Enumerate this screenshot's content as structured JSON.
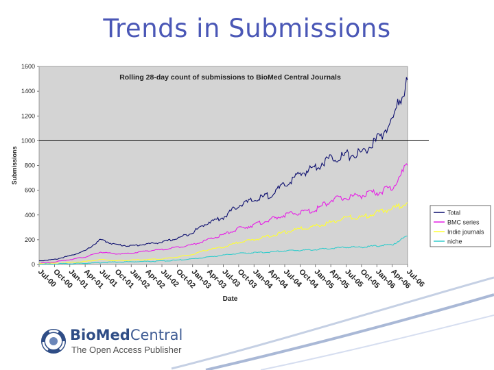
{
  "slide": {
    "title": "Trends in Submissions"
  },
  "logo": {
    "name_bold": "BioMed",
    "name_light": "Central",
    "tagline": "The Open Access Publisher"
  },
  "colors": {
    "title": "#4a57b6",
    "plot_background": "#d4d4d4",
    "total": "#0b0d6e",
    "bmc_series": "#e61ee6",
    "independent": "#ffff33",
    "bmc_niche": "#33cccc"
  },
  "chart_data": {
    "type": "line",
    "title": "Rolling 28-day count of submissions to BioMed Central Journals",
    "xlabel": "Date",
    "ylabel": "Submissions",
    "ylim": [
      0,
      1600
    ],
    "yticks": [
      0,
      200,
      400,
      600,
      800,
      1000,
      1200,
      1400,
      1600
    ],
    "grid": "horizontal line at 1000",
    "legend_position": "right",
    "x": [
      "Jul-00",
      "Oct-00",
      "Jan-01",
      "Apr-01",
      "Jul-01",
      "Oct-01",
      "Jan-02",
      "Apr-02",
      "Jul-02",
      "Oct-02",
      "Jan-03",
      "Apr-03",
      "Jul-03",
      "Oct-03",
      "Jan-04",
      "Apr-04",
      "Jul-04",
      "Oct-04",
      "Jan-05",
      "Apr-05",
      "Jul-05",
      "Oct-05",
      "Jan-06",
      "Apr-06",
      "Jul-06"
    ],
    "series": [
      {
        "name": "Total",
        "color": "#0b0d6e",
        "values": [
          30,
          40,
          70,
          110,
          200,
          160,
          150,
          165,
          180,
          210,
          260,
          340,
          380,
          480,
          520,
          560,
          640,
          730,
          790,
          860,
          880,
          900,
          1000,
          1160,
          1490
        ]
      },
      {
        "name": "BMC series",
        "color": "#e61ee6",
        "values": [
          10,
          20,
          40,
          60,
          100,
          85,
          90,
          110,
          120,
          140,
          160,
          200,
          240,
          290,
          320,
          360,
          400,
          420,
          440,
          520,
          540,
          560,
          580,
          620,
          800
        ]
      },
      {
        "name": "Indie journals",
        "color": "#ffff33",
        "values": [
          5,
          10,
          15,
          25,
          40,
          30,
          35,
          40,
          45,
          60,
          80,
          120,
          140,
          180,
          200,
          230,
          260,
          290,
          310,
          340,
          380,
          380,
          420,
          450,
          500
        ]
      },
      {
        "name": "niche",
        "color": "#33cccc",
        "values": [
          2,
          4,
          6,
          10,
          15,
          20,
          22,
          25,
          28,
          35,
          45,
          60,
          75,
          90,
          95,
          100,
          110,
          115,
          120,
          130,
          140,
          140,
          150,
          160,
          230
        ]
      }
    ]
  }
}
